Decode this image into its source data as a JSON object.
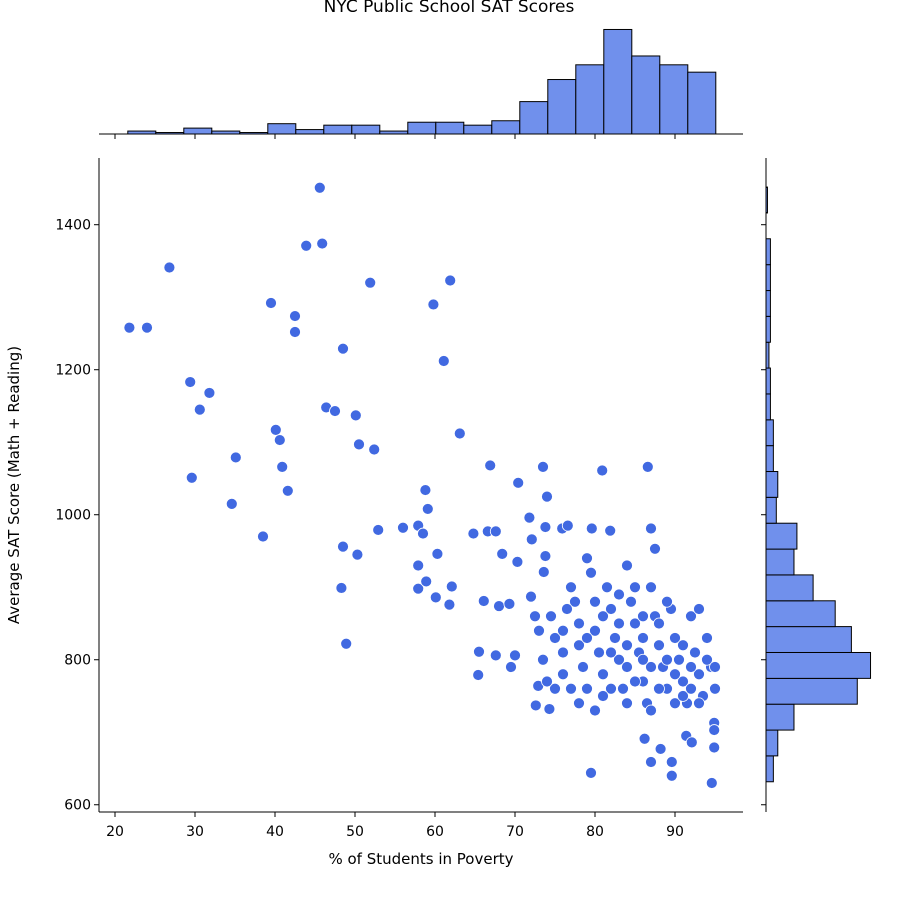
{
  "chart_data": {
    "type": "jointplot",
    "title": "NYC Public School SAT Scores",
    "xlabel": "% of Students in Poverty",
    "ylabel": "Average SAT Score (Math + Reading)",
    "xlim": [
      18,
      98.5
    ],
    "ylim": [
      590,
      1492
    ],
    "xticks": [
      20,
      30,
      40,
      50,
      60,
      70,
      80,
      90
    ],
    "yticks": [
      600,
      800,
      1000,
      1200,
      1400
    ],
    "point_color": "#4169e1",
    "hist_color": "#7090ec",
    "x": [
      21.8,
      24,
      26.8,
      29.4,
      31.8,
      30.6,
      29.6,
      35.1,
      34.6,
      38.5,
      39.5,
      40.1,
      40.6,
      40.9,
      41.6,
      42.5,
      42.5,
      43.9,
      45.6,
      45.9,
      46.4,
      47.5,
      48.5,
      48.3,
      48.5,
      48.9,
      50.1,
      50.3,
      50.5,
      51.9,
      52.4,
      52.9,
      56,
      57.9,
      57.9,
      57.9,
      58.5,
      58.8,
      59.1,
      58.9,
      59.8,
      60.1,
      60.3,
      61.1,
      61.8,
      61.9,
      62.1,
      63.1,
      64.8,
      65.4,
      65.5,
      66.1,
      66.6,
      66.9,
      67.6,
      67.6,
      68,
      68.4,
      69.3,
      69.5,
      70,
      70.4,
      70.3,
      71.8,
      72,
      72.1,
      72.6,
      72.9,
      73.5,
      73.8,
      74,
      73.6,
      73.8,
      74.3,
      75.9,
      76.6,
      79.6,
      80.9,
      81.9,
      86.6,
      87,
      79.5,
      86.2,
      87,
      88.2,
      89.6,
      89.6,
      91.4,
      92.1,
      94.6,
      94.9,
      94.9,
      94.9,
      87.5,
      74.5,
      75,
      76,
      77,
      77.5,
      78,
      78.5,
      79,
      79.5,
      80,
      80.5,
      81,
      81.5,
      82,
      82.5,
      83,
      83.5,
      84,
      84.5,
      85,
      85.5,
      86,
      86.5,
      87,
      87.5,
      88,
      88.5,
      89,
      89.5,
      90,
      90.5,
      91,
      91.5,
      92,
      92.5,
      93,
      93.5,
      94,
      94.5,
      95,
      73,
      73.5,
      72.5,
      76.5,
      77,
      78,
      79,
      80,
      81,
      82,
      83,
      84,
      85,
      86,
      87,
      88,
      89,
      90,
      91,
      92,
      93,
      94,
      95,
      84,
      82,
      80,
      78,
      76,
      86,
      88,
      90,
      93,
      75,
      81,
      83,
      85,
      87,
      89,
      91,
      74,
      76,
      79,
      84,
      86,
      92
    ],
    "y": [
      1258,
      1258,
      1341,
      1183,
      1168,
      1145,
      1051,
      1079,
      1015,
      970,
      1292,
      1117,
      1103,
      1066,
      1033,
      1274,
      1252,
      1371,
      1451,
      1374,
      1148,
      1143,
      1229,
      899,
      956,
      822,
      1137,
      945,
      1097,
      1320,
      1090,
      979,
      982,
      985,
      930,
      898,
      974,
      1034,
      1008,
      908,
      1290,
      886,
      946,
      1212,
      876,
      1323,
      901,
      1112,
      974,
      779,
      811,
      881,
      977,
      1068,
      977,
      806,
      874,
      946,
      877,
      790,
      806,
      1044,
      935,
      996,
      887,
      966,
      737,
      764,
      1066,
      983,
      1025,
      921,
      943,
      732,
      981,
      985,
      981,
      1061,
      978,
      1066,
      981,
      644,
      691,
      659,
      677,
      659,
      640,
      695,
      686,
      630,
      679,
      713,
      703,
      953,
      860,
      830,
      810,
      900,
      880,
      850,
      790,
      760,
      920,
      840,
      810,
      780,
      900,
      870,
      830,
      800,
      760,
      930,
      880,
      850,
      810,
      770,
      740,
      900,
      860,
      820,
      790,
      760,
      870,
      830,
      800,
      770,
      740,
      860,
      810,
      780,
      750,
      830,
      790,
      760,
      840,
      800,
      860,
      870,
      760,
      740,
      940,
      730,
      860,
      760,
      890,
      740,
      900,
      830,
      730,
      850,
      880,
      740,
      820,
      790,
      870,
      800,
      790,
      790,
      810,
      880,
      820,
      780,
      860,
      760,
      780,
      740,
      760,
      750,
      850,
      770,
      790,
      800,
      750,
      770,
      840,
      830,
      820,
      800,
      760
    ],
    "top_hist": {
      "bins": [
        21.6,
        25.1,
        28.6,
        32.1,
        35.6,
        39.1,
        42.6,
        46.1,
        49.6,
        53.1,
        56.6,
        60.1,
        63.6,
        67.1,
        70.6,
        74.1,
        77.6,
        81.1,
        84.6,
        88.1,
        91.6,
        95.1
      ],
      "counts": [
        2,
        1,
        4,
        2,
        1,
        7,
        3,
        6,
        6,
        2,
        8,
        8,
        6,
        9,
        22,
        37,
        47,
        71,
        53,
        47,
        42
      ],
      "ylim": [
        0,
        72
      ]
    },
    "right_hist": {
      "bins": [
        631.7,
        667.4,
        703.0,
        738.7,
        774.3,
        810.0,
        845.7,
        881.3,
        917.0,
        952.6,
        988.3,
        1024.0,
        1059.6,
        1095.3,
        1130.9,
        1166.6,
        1202.3,
        1237.9,
        1273.6,
        1309.2,
        1344.9,
        1380.6,
        1416.2,
        1451.9
      ],
      "counts": [
        5,
        8,
        19,
        62,
        71,
        58,
        47,
        32,
        19,
        21,
        7,
        8,
        5,
        5,
        3,
        3,
        2,
        3,
        3,
        3,
        3,
        0,
        1
      ],
      "xlim": [
        0,
        72
      ]
    }
  }
}
